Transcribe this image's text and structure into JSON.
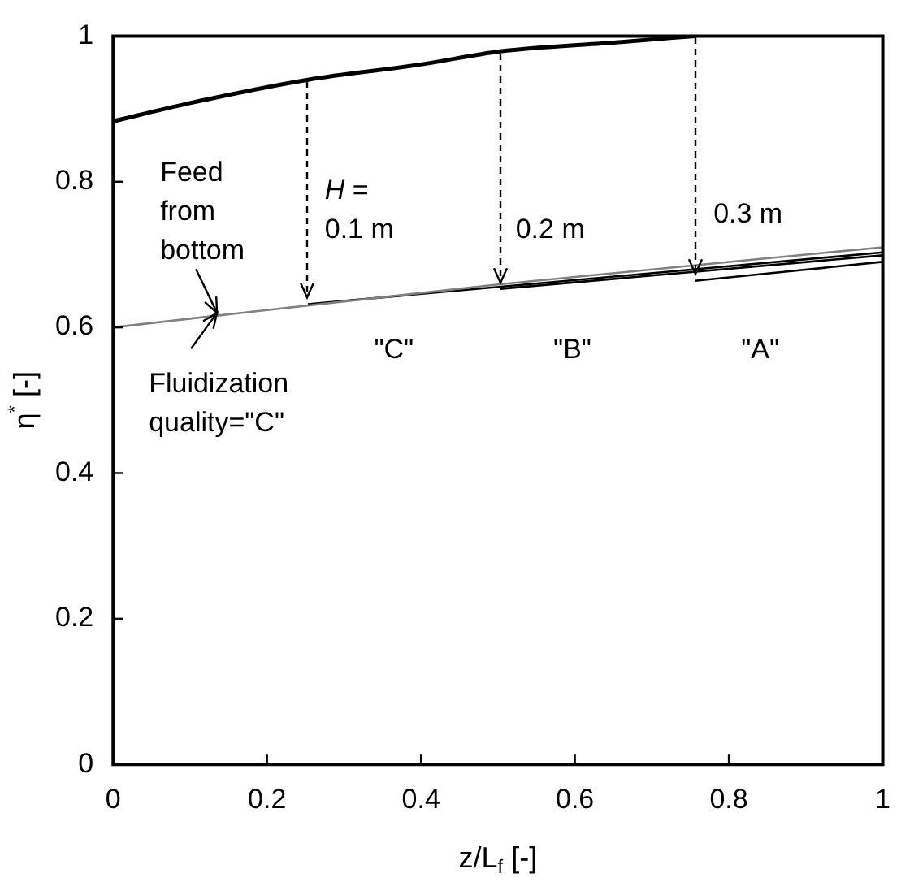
{
  "chart_data": {
    "type": "line",
    "xlabel": "z/L$_{f}$ [-]",
    "ylabel": "η$^{*}$ [-]",
    "xlim": [
      0,
      1
    ],
    "ylim": [
      0,
      1
    ],
    "xticks": [
      0,
      0.2,
      0.4,
      0.6,
      0.8,
      1
    ],
    "yticks": [
      0,
      0.2,
      0.4,
      0.6,
      0.8,
      1
    ],
    "series": [
      {
        "color": "#000000",
        "x": [
          0,
          0.1,
          0.253,
          0.4,
          0.503,
          0.65,
          0.756
        ],
        "values": [
          0.883,
          0.908,
          0.94,
          0.961,
          0.979,
          0.991,
          1.0
        ]
      },
      {
        "color": "#808080",
        "x": [
          0,
          0.5,
          1
        ],
        "values": [
          0.6,
          0.659,
          0.71
        ]
      },
      {
        "color": "#000000",
        "x": [
          0.253,
          1
        ],
        "values": [
          0.632,
          0.703
        ]
      },
      {
        "color": "#000000",
        "x": [
          0.503,
          1
        ],
        "values": [
          0.653,
          0.699
        ]
      },
      {
        "color": "#000000",
        "x": [
          0.756,
          1
        ],
        "values": [
          0.664,
          0.69
        ]
      }
    ],
    "annotations": [
      {
        "text": "Feed\nfrom\nbottom",
        "x": 0.135,
        "y": 0.62
      },
      {
        "text": "Fluidization\nquality=\"C\"",
        "x": 0.135,
        "y": 0.62
      },
      "H =\n0.1 m",
      "0.2 m",
      "0.3 m",
      "\"C\"",
      "\"B\"",
      "\"A\""
    ]
  }
}
